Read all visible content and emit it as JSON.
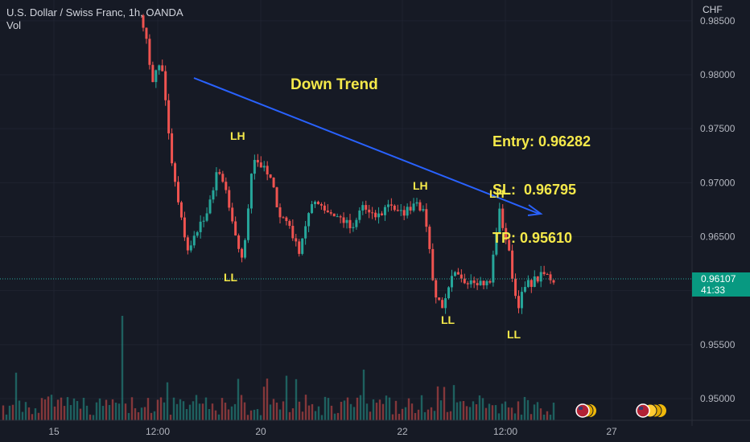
{
  "legend": {
    "symbol_line": "U.S. Dollar / Swiss Franc, 1h, OANDA",
    "volume_label": "Vol"
  },
  "currency": "CHF",
  "current_price": {
    "price": "0.96107",
    "countdown": "41:33"
  },
  "annotations": {
    "trend_label": "Down Trend",
    "entry": "Entry: 0.96282",
    "sl": "SL:  0.96795",
    "tp": "TP: 0.95610",
    "swings": [
      "LH",
      "LL",
      "LH",
      "LL",
      "LH",
      "LL"
    ]
  },
  "colors": {
    "background": "#161a25",
    "up": "#26a69a",
    "down": "#ef5350",
    "trendline": "#2962ff",
    "annotation": "#f5e94a",
    "price_tag": "#089981"
  },
  "chart_data": {
    "type": "candlestick",
    "symbol": "USDCHF",
    "timeframe": "1h",
    "y_ticks": [
      0.985,
      0.98,
      0.975,
      0.97,
      0.965,
      0.96,
      0.955,
      0.95
    ],
    "y_tick_labels": [
      "0.98500",
      "0.98000",
      "0.97500",
      "0.97000",
      "0.96500",
      "0.96000",
      "0.95500",
      "0.95000"
    ],
    "ylim": [
      0.9478,
      0.9862
    ],
    "x_tick_labels": [
      "15",
      "12:00",
      "20",
      "12:00",
      "22",
      "12:00",
      "27"
    ],
    "last_price": 0.96107,
    "trendline": {
      "from": 0.97969,
      "to": 0.96713
    },
    "close_path": [
      0.9848,
      0.9795,
      0.9813,
      0.9725,
      0.9672,
      0.9634,
      0.966,
      0.9668,
      0.971,
      0.9695,
      0.965,
      0.9628,
      0.9725,
      0.9715,
      0.9702,
      0.967,
      0.9662,
      0.9635,
      0.9668,
      0.9685,
      0.9675,
      0.967,
      0.9665,
      0.9655,
      0.968,
      0.9668,
      0.967,
      0.9683,
      0.967,
      0.9675,
      0.9685,
      0.9665,
      0.9595,
      0.9585,
      0.9615,
      0.9608,
      0.9612,
      0.9608,
      0.9606,
      0.9675,
      0.964,
      0.9585,
      0.9605,
      0.961,
      0.9615,
      0.961
    ],
    "volume_peak_index": 37,
    "volume_peak_relative": 3.6
  }
}
